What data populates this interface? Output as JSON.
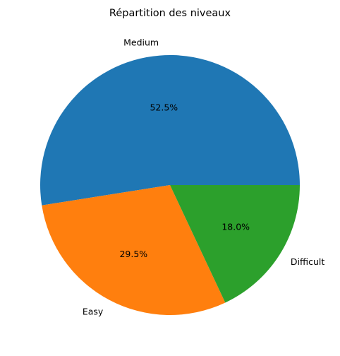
{
  "chart_data": {
    "type": "pie",
    "title": "Répartition des niveaux",
    "categories": [
      "Medium",
      "Easy",
      "Difficult"
    ],
    "values": [
      52.5,
      29.5,
      18.0
    ],
    "percent_labels": [
      "52.5%",
      "29.5%",
      "18.0%"
    ],
    "colors": [
      "#1f77b4",
      "#ff7f0e",
      "#2ca02c"
    ],
    "start_angle_deg": 0,
    "direction": "counterclockwise",
    "legend": "none"
  }
}
